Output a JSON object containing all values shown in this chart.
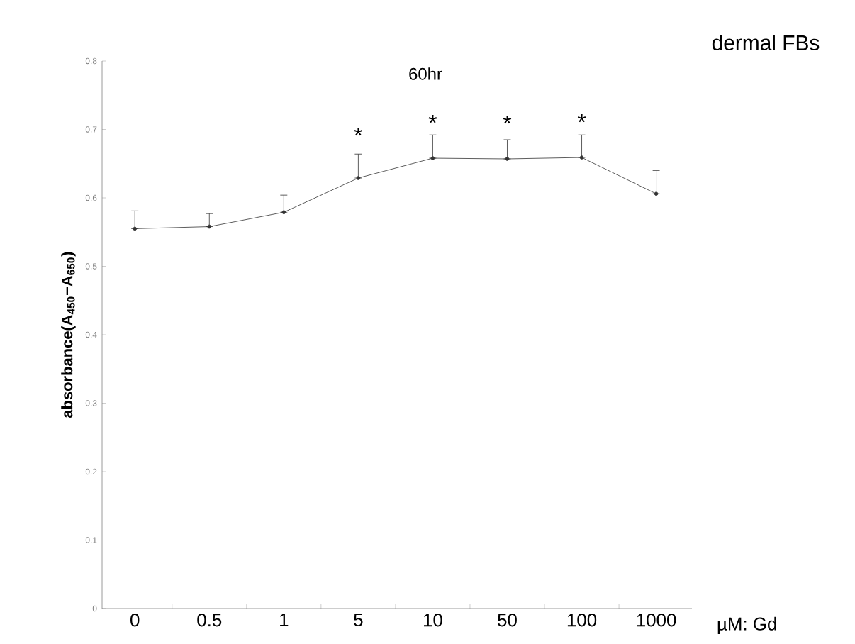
{
  "chart_data": {
    "type": "line",
    "title": "dermal FBs",
    "subtitle": "60hr",
    "xlabel": "µM: Gd",
    "ylabel": "absorbance(A$_{450}$−A$_{650}$)",
    "categories": [
      "0",
      "0.5",
      "1",
      "5",
      "10",
      "50",
      "100",
      "1000"
    ],
    "values": [
      0.555,
      0.558,
      0.579,
      0.629,
      0.658,
      0.657,
      0.659,
      0.606
    ],
    "errors": [
      [
        0.555,
        0.581
      ],
      [
        0.558,
        0.577
      ],
      [
        0.579,
        0.604
      ],
      [
        0.629,
        0.664
      ],
      [
        0.658,
        0.692
      ],
      [
        0.657,
        0.685
      ],
      [
        0.659,
        0.692
      ],
      [
        0.606,
        0.64
      ]
    ],
    "color": "#333333",
    "marker": "circle",
    "line_style": "solid",
    "ylim": [
      0,
      0.8
    ],
    "yticks": [
      0,
      0.1,
      0.2,
      0.3,
      0.4,
      0.5,
      0.6,
      0.7,
      0.8
    ],
    "annotations": [
      "*",
      "*",
      "*",
      "*"
    ]
  }
}
